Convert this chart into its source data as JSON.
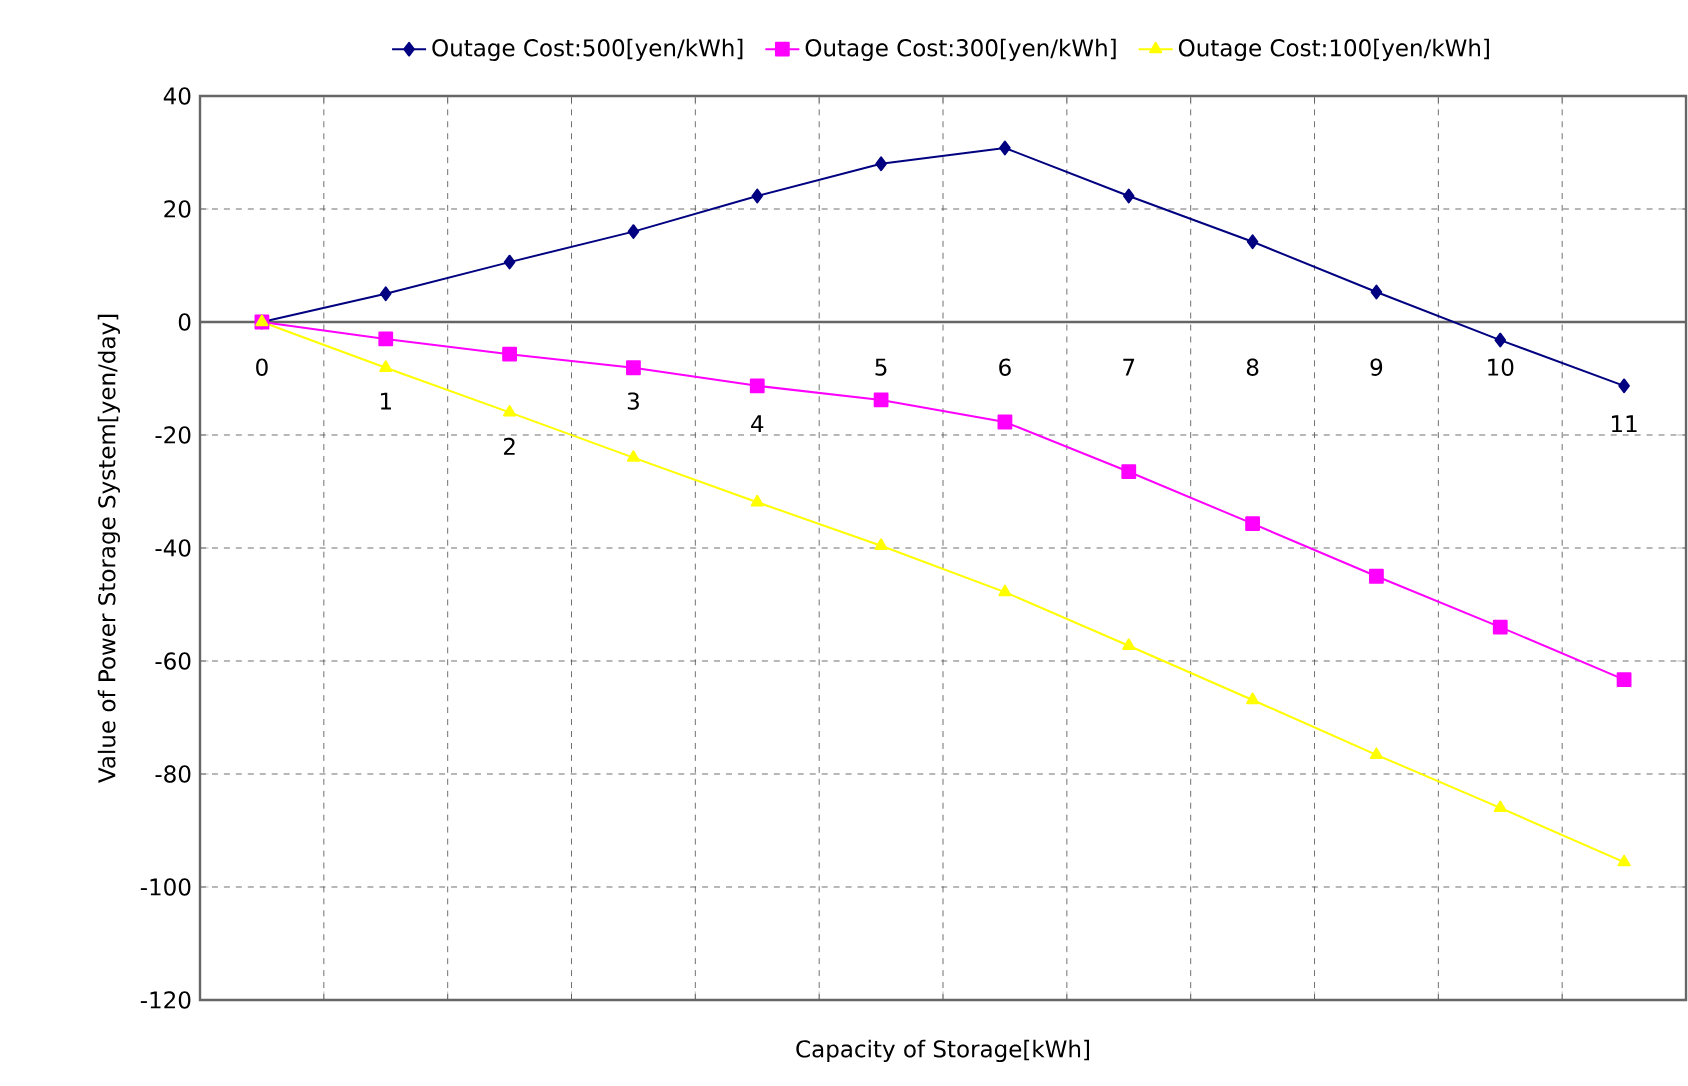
{
  "chart_data": {
    "type": "line",
    "xlabel": "Capacity of Storage[kWh]",
    "ylabel": "Value of Power Storage System[yen/day]",
    "categories": [
      "0",
      "1",
      "2",
      "3",
      "4",
      "5",
      "6",
      "7",
      "8",
      "9",
      "10",
      "11"
    ],
    "series": [
      {
        "name": "Outage Cost:500[yen/kWh]",
        "color": "#000080",
        "marker": "diamond",
        "values": [
          0,
          5,
          10.6,
          16,
          22.3,
          28,
          30.8,
          22.3,
          14.2,
          5.3,
          -3.2,
          -11.3
        ]
      },
      {
        "name": "Outage Cost:300[yen/kWh]",
        "color": "#ff00ff",
        "marker": "square",
        "values": [
          0,
          -3,
          -5.7,
          -8.1,
          -11.3,
          -13.8,
          -17.7,
          -26.5,
          -35.7,
          -45,
          -54,
          -63.3
        ]
      },
      {
        "name": "Outage Cost:100[yen/kWh]",
        "color": "#ffff00",
        "marker": "triangle",
        "values": [
          0,
          -8.1,
          -16,
          -24,
          -31.9,
          -39.6,
          -47.8,
          -57.3,
          -66.9,
          -76.6,
          -86,
          -95.6
        ]
      }
    ],
    "ylim": [
      -120,
      40
    ],
    "yticks": [
      -120,
      -100,
      -80,
      -60,
      -40,
      -20,
      0,
      20,
      40
    ],
    "grid": true,
    "legend": "top"
  }
}
